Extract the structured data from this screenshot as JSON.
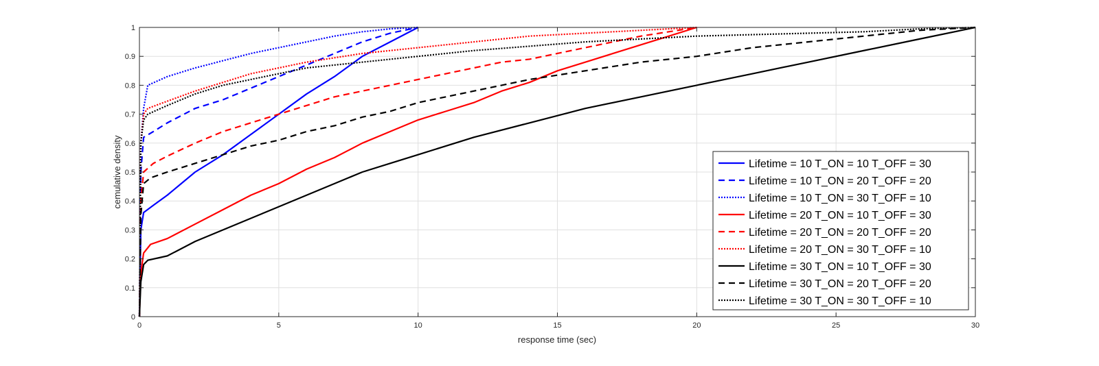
{
  "chart_data": {
    "type": "line",
    "title": "",
    "xlabel": "response time (sec)",
    "ylabel": "cemulative density",
    "xlim": [
      0,
      30
    ],
    "ylim": [
      0,
      1
    ],
    "xticks": [
      "0",
      "5",
      "10",
      "15",
      "20",
      "25",
      "30"
    ],
    "yticks": [
      "0",
      "0.1",
      "0.2",
      "0.3",
      "0.4",
      "0.5",
      "0.6",
      "0.7",
      "0.8",
      "0.9",
      "1"
    ],
    "grid": true,
    "legend_position": "bottom-right",
    "series": [
      {
        "name": "Lifetime = 10 T_ON = 10 T_OFF = 30",
        "color": "#0000ff",
        "line_style": "solid",
        "points": [
          [
            0,
            0
          ],
          [
            0.05,
            0.3
          ],
          [
            0.15,
            0.36
          ],
          [
            0.5,
            0.385
          ],
          [
            1,
            0.42
          ],
          [
            1.5,
            0.46
          ],
          [
            2,
            0.5
          ],
          [
            3,
            0.56
          ],
          [
            4,
            0.63
          ],
          [
            5,
            0.7
          ],
          [
            6,
            0.77
          ],
          [
            7,
            0.83
          ],
          [
            8,
            0.9
          ],
          [
            9,
            0.95
          ],
          [
            10,
            1.0
          ]
        ]
      },
      {
        "name": "Lifetime = 10 T_ON = 20 T_OFF = 20",
        "color": "#0000ff",
        "line_style": "dashed",
        "points": [
          [
            0,
            0
          ],
          [
            0.05,
            0.5
          ],
          [
            0.15,
            0.62
          ],
          [
            0.5,
            0.64
          ],
          [
            1,
            0.67
          ],
          [
            2,
            0.72
          ],
          [
            3,
            0.75
          ],
          [
            4,
            0.79
          ],
          [
            5,
            0.83
          ],
          [
            6,
            0.87
          ],
          [
            7,
            0.91
          ],
          [
            8,
            0.95
          ],
          [
            9,
            0.98
          ],
          [
            10,
            1.0
          ]
        ]
      },
      {
        "name": "Lifetime = 10 T_ON = 30 T_OFF = 10",
        "color": "#0000ff",
        "line_style": "dotted",
        "points": [
          [
            0,
            0
          ],
          [
            0.05,
            0.6
          ],
          [
            0.15,
            0.72
          ],
          [
            0.3,
            0.8
          ],
          [
            1,
            0.83
          ],
          [
            2,
            0.86
          ],
          [
            3,
            0.885
          ],
          [
            4,
            0.91
          ],
          [
            5,
            0.93
          ],
          [
            6,
            0.95
          ],
          [
            7,
            0.97
          ],
          [
            8,
            0.985
          ],
          [
            9,
            0.995
          ],
          [
            10,
            1.0
          ]
        ]
      },
      {
        "name": "Lifetime =  20 T_ON = 10 T_OFF = 30",
        "color": "#ff0000",
        "line_style": "solid",
        "points": [
          [
            0,
            0
          ],
          [
            0.05,
            0.15
          ],
          [
            0.15,
            0.22
          ],
          [
            0.4,
            0.25
          ],
          [
            1,
            0.27
          ],
          [
            2,
            0.32
          ],
          [
            3,
            0.37
          ],
          [
            4,
            0.42
          ],
          [
            5,
            0.46
          ],
          [
            6,
            0.51
          ],
          [
            7,
            0.55
          ],
          [
            8,
            0.6
          ],
          [
            9,
            0.64
          ],
          [
            10,
            0.68
          ],
          [
            11,
            0.71
          ],
          [
            12,
            0.74
          ],
          [
            13,
            0.78
          ],
          [
            14,
            0.81
          ],
          [
            15,
            0.85
          ],
          [
            16,
            0.88
          ],
          [
            17,
            0.91
          ],
          [
            18,
            0.94
          ],
          [
            19,
            0.97
          ],
          [
            20,
            1.0
          ]
        ]
      },
      {
        "name": "Lifetime =  20 T_ON = 20 T_OFF = 20",
        "color": "#ff0000",
        "line_style": "dashed",
        "points": [
          [
            0,
            0
          ],
          [
            0.05,
            0.4
          ],
          [
            0.15,
            0.5
          ],
          [
            0.5,
            0.53
          ],
          [
            1,
            0.555
          ],
          [
            2,
            0.6
          ],
          [
            3,
            0.64
          ],
          [
            4,
            0.67
          ],
          [
            5,
            0.7
          ],
          [
            6,
            0.73
          ],
          [
            7,
            0.76
          ],
          [
            8,
            0.78
          ],
          [
            9,
            0.8
          ],
          [
            10,
            0.82
          ],
          [
            11,
            0.84
          ],
          [
            12,
            0.86
          ],
          [
            13,
            0.88
          ],
          [
            14,
            0.89
          ],
          [
            15,
            0.91
          ],
          [
            16,
            0.93
          ],
          [
            17,
            0.95
          ],
          [
            18,
            0.97
          ],
          [
            19,
            0.985
          ],
          [
            20,
            1.0
          ]
        ]
      },
      {
        "name": "Lifetime = 20 T_ON = 30 T_OFF = 10",
        "color": "#ff0000",
        "line_style": "dotted",
        "points": [
          [
            0,
            0
          ],
          [
            0.05,
            0.6
          ],
          [
            0.15,
            0.7
          ],
          [
            0.3,
            0.72
          ],
          [
            1,
            0.745
          ],
          [
            2,
            0.78
          ],
          [
            3,
            0.81
          ],
          [
            4,
            0.84
          ],
          [
            5,
            0.86
          ],
          [
            6,
            0.88
          ],
          [
            7,
            0.895
          ],
          [
            8,
            0.91
          ],
          [
            9,
            0.92
          ],
          [
            10,
            0.93
          ],
          [
            11,
            0.94
          ],
          [
            12,
            0.95
          ],
          [
            13,
            0.96
          ],
          [
            14,
            0.97
          ],
          [
            15,
            0.975
          ],
          [
            16,
            0.98
          ],
          [
            17,
            0.985
          ],
          [
            18,
            0.99
          ],
          [
            19,
            0.995
          ],
          [
            20,
            1.0
          ]
        ]
      },
      {
        "name": "Lifetime = 30 T_ON = 10 T_OFF = 30",
        "color": "#000000",
        "line_style": "solid",
        "points": [
          [
            0,
            0
          ],
          [
            0.05,
            0.12
          ],
          [
            0.15,
            0.18
          ],
          [
            0.3,
            0.195
          ],
          [
            1,
            0.21
          ],
          [
            2,
            0.26
          ],
          [
            3,
            0.3
          ],
          [
            4,
            0.34
          ],
          [
            5,
            0.38
          ],
          [
            6,
            0.42
          ],
          [
            7,
            0.46
          ],
          [
            8,
            0.5
          ],
          [
            9,
            0.53
          ],
          [
            10,
            0.56
          ],
          [
            12,
            0.62
          ],
          [
            14,
            0.67
          ],
          [
            16,
            0.72
          ],
          [
            18,
            0.76
          ],
          [
            20,
            0.8
          ],
          [
            22,
            0.84
          ],
          [
            24,
            0.88
          ],
          [
            26,
            0.92
          ],
          [
            28,
            0.96
          ],
          [
            30,
            1.0
          ]
        ]
      },
      {
        "name": "Lifetime = 30 T_ON = 20 T_OFF = 20",
        "color": "#000000",
        "line_style": "dashed",
        "points": [
          [
            0,
            0
          ],
          [
            0.05,
            0.35
          ],
          [
            0.15,
            0.46
          ],
          [
            0.4,
            0.48
          ],
          [
            1,
            0.5
          ],
          [
            2,
            0.53
          ],
          [
            3,
            0.56
          ],
          [
            4,
            0.59
          ],
          [
            5,
            0.61
          ],
          [
            6,
            0.64
          ],
          [
            7,
            0.66
          ],
          [
            8,
            0.69
          ],
          [
            9,
            0.71
          ],
          [
            10,
            0.74
          ],
          [
            12,
            0.78
          ],
          [
            14,
            0.82
          ],
          [
            16,
            0.85
          ],
          [
            18,
            0.88
          ],
          [
            20,
            0.9
          ],
          [
            22,
            0.93
          ],
          [
            24,
            0.95
          ],
          [
            26,
            0.97
          ],
          [
            28,
            0.99
          ],
          [
            30,
            1.0
          ]
        ]
      },
      {
        "name": "Lifetime = 30 T_ON = 30 T_OFF = 10",
        "color": "#000000",
        "line_style": "dotted",
        "points": [
          [
            0,
            0
          ],
          [
            0.05,
            0.6
          ],
          [
            0.15,
            0.68
          ],
          [
            0.3,
            0.7
          ],
          [
            1,
            0.73
          ],
          [
            2,
            0.77
          ],
          [
            3,
            0.8
          ],
          [
            4,
            0.82
          ],
          [
            5,
            0.84
          ],
          [
            6,
            0.86
          ],
          [
            7,
            0.87
          ],
          [
            8,
            0.88
          ],
          [
            9,
            0.89
          ],
          [
            10,
            0.9
          ],
          [
            12,
            0.92
          ],
          [
            14,
            0.935
          ],
          [
            16,
            0.95
          ],
          [
            18,
            0.96
          ],
          [
            20,
            0.97
          ],
          [
            22,
            0.975
          ],
          [
            24,
            0.98
          ],
          [
            26,
            0.985
          ],
          [
            28,
            0.995
          ],
          [
            30,
            1.0
          ]
        ]
      }
    ]
  }
}
